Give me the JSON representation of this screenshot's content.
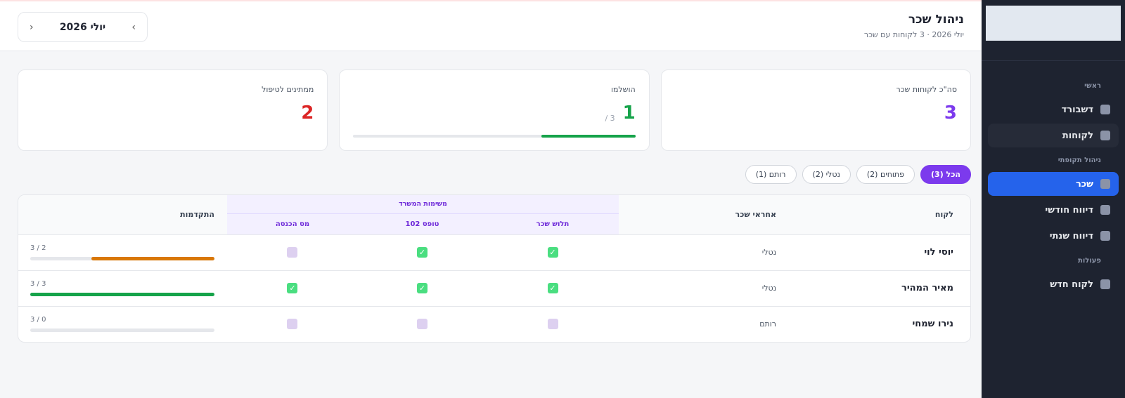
{
  "header": {
    "title": "ניהול שכר",
    "subtitle": "יולי 2026 · 3 לקוחות עם שכר",
    "month": "יולי 2026"
  },
  "sidebar": {
    "sections": [
      {
        "title": "ראשי",
        "items": [
          "דשבורד",
          "לקוחות"
        ]
      },
      {
        "title": "ניהול תקופתי",
        "items": [
          "שכר",
          "דיווח חודשי",
          "דיווח שנתי"
        ]
      },
      {
        "title": "פעולות",
        "items": [
          "לקוח חדש"
        ]
      }
    ]
  },
  "stats": [
    {
      "label": "סה\"כ לקוחות שכר",
      "value": 3,
      "color": "#7c3aed"
    },
    {
      "label": "הושלמו",
      "value": 1,
      "suffix": "/ 3",
      "total": 3,
      "color": "#16a34a"
    },
    {
      "label": "ממתינים לטיפול",
      "value": 2,
      "color": "#dc2626"
    }
  ],
  "tabs": [
    "הכל (3)",
    "פתוחים (2)",
    "נטלי (2)",
    "רותם (1)"
  ],
  "table": {
    "headers": {
      "client": "לקוח",
      "owner": "אחראי שכר",
      "group": "משימות המשרד",
      "tasks": [
        "תלוש שכר",
        "טופס 102",
        "מס הכנסה"
      ],
      "progress": "התקדמות"
    },
    "rows": [
      {
        "client": "יוסי לוי",
        "owner": "נטלי",
        "tasks": [
          true,
          true,
          false
        ],
        "progress": {
          "label": "2 / 3",
          "done": 2,
          "total": 3,
          "color": "#d97706"
        }
      },
      {
        "client": "מאיר המהיר",
        "owner": "נטלי",
        "tasks": [
          true,
          true,
          true
        ],
        "progress": {
          "label": "3 / 3",
          "done": 3,
          "total": 3,
          "color": "#16a34a"
        }
      },
      {
        "client": "נירו שמחי",
        "owner": "רותם",
        "tasks": [
          false,
          false,
          false
        ],
        "progress": {
          "label": "0 / 3",
          "done": 0,
          "total": 3,
          "color": "#16a34a"
        }
      }
    ]
  }
}
